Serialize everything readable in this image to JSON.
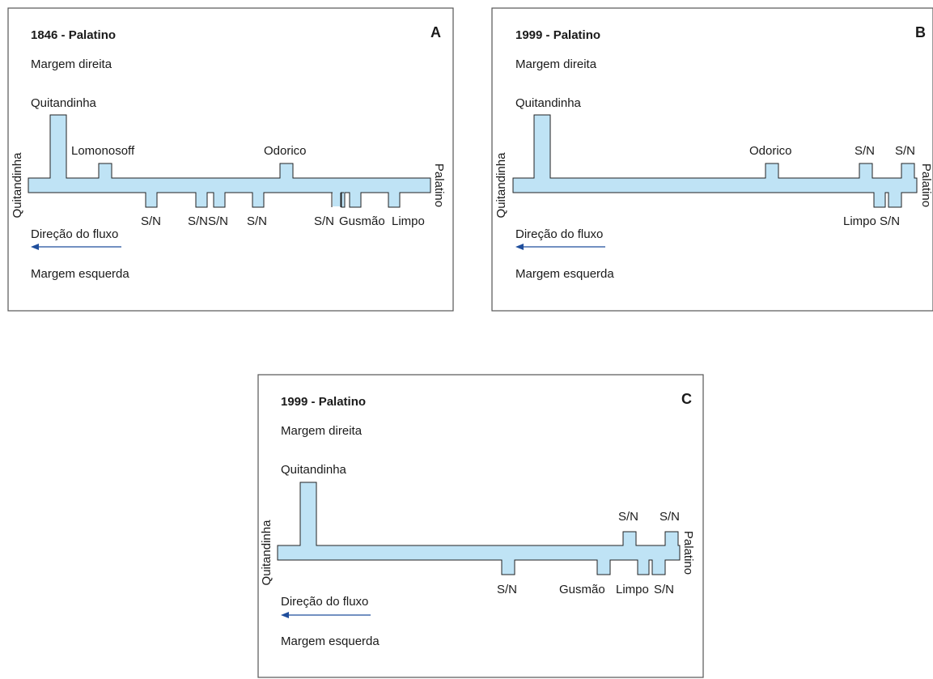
{
  "panels": [
    {
      "id": "A",
      "title": "1846 - Palatino",
      "letter": "A",
      "right_bank": "Margem direita",
      "left_bank": "Margem esquerda",
      "flow": "Direção do fluxo",
      "main_tributary": "Quitandinha",
      "start_label": "Quitandinha",
      "end_label": "Palatino",
      "top_labels": [
        "Lomonosoff",
        "Odorico"
      ],
      "bottom_labels": [
        "S/N",
        "S/NS/N",
        "S/N",
        "S/N",
        "Gusmão",
        "Limpo"
      ]
    },
    {
      "id": "B",
      "title": "1999 - Palatino",
      "letter": "B",
      "right_bank": "Margem direita",
      "left_bank": "Margem esquerda",
      "flow": "Direção do fluxo",
      "main_tributary": "Quitandinha",
      "start_label": "Quitandinha",
      "end_label": "Palatino",
      "top_labels": [
        "Odorico",
        "S/N",
        "S/N"
      ],
      "bottom_labels": [
        "Limpo S/N"
      ]
    },
    {
      "id": "C",
      "title": "1999 - Palatino",
      "letter": "C",
      "right_bank": "Margem direita",
      "left_bank": "Margem esquerda",
      "flow": "Direção do fluxo",
      "main_tributary": "Quitandinha",
      "start_label": "Quitandinha",
      "end_label": "Palatino",
      "top_labels": [
        "S/N",
        "S/N"
      ],
      "bottom_labels": [
        "S/N",
        "Gusmão",
        "Limpo",
        "S/N"
      ]
    }
  ],
  "colors": {
    "river": "#bfe3f5",
    "flow_arrow": "#1f4e9c",
    "frame": "#555555"
  }
}
